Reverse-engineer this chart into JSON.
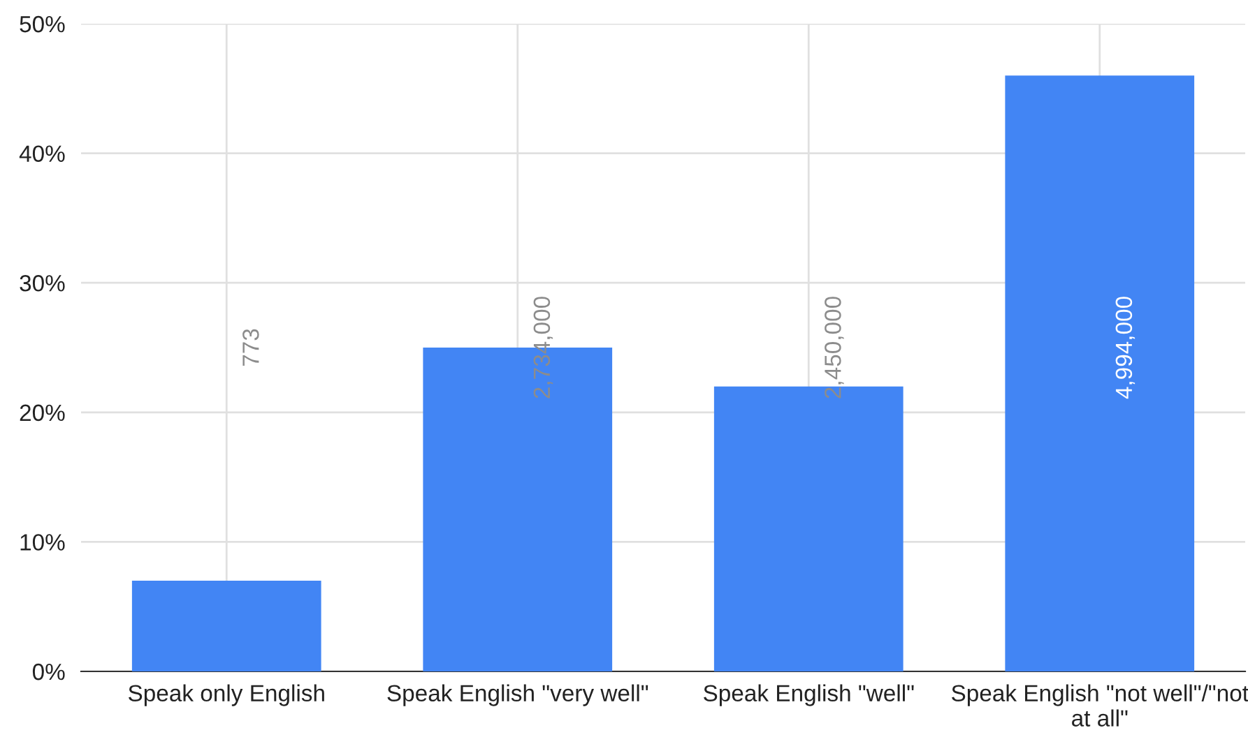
{
  "chart_data": {
    "type": "bar",
    "categories": [
      "Speak only English",
      "Speak English \"very well\"",
      "Speak English \"well\"",
      "Speak English \"not well\"/\"not at all\""
    ],
    "values": [
      7,
      25,
      22,
      46
    ],
    "annotations": [
      "773",
      "2,734,000",
      "2,450,000",
      "4,994,000"
    ],
    "color": "#4285f4",
    "ylim": [
      0,
      50
    ],
    "yticks": [
      {
        "value": 0,
        "label": "0%"
      },
      {
        "value": 10,
        "label": "10%"
      },
      {
        "value": 20,
        "label": "20%"
      },
      {
        "value": 30,
        "label": "30%"
      },
      {
        "value": 40,
        "label": "40%"
      },
      {
        "value": 50,
        "label": "50%"
      }
    ],
    "grid": true
  }
}
